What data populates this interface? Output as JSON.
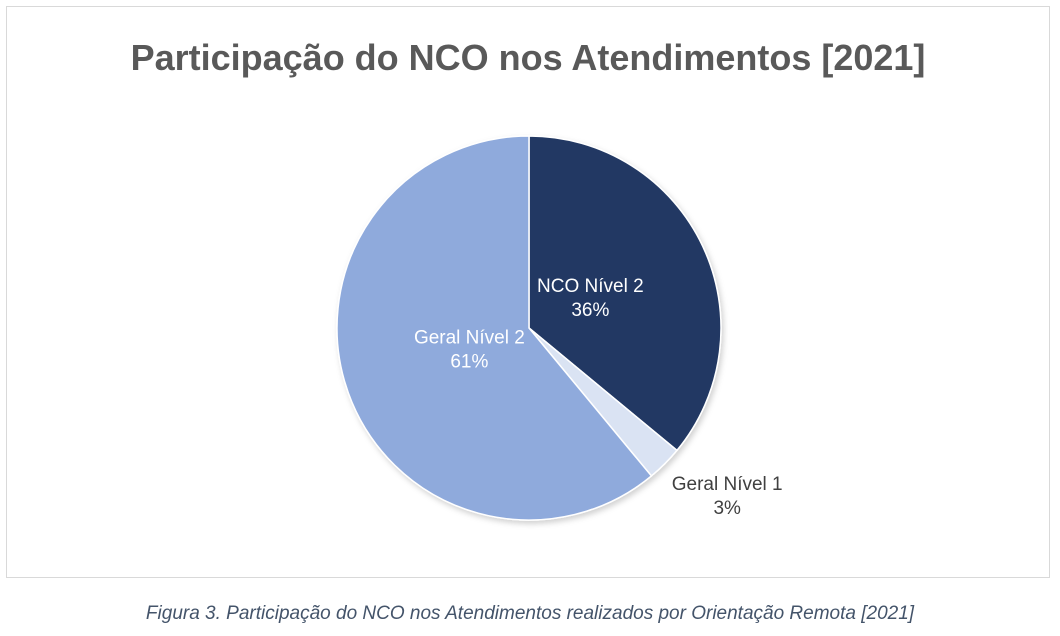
{
  "chart_data": {
    "type": "pie",
    "title": "Participação do NCO nos Atendimentos [2021]",
    "slices": [
      {
        "label": "NCO Nível 2",
        "value": 36,
        "value_label": "36%",
        "color": "#203864",
        "text_color": "#ffffff",
        "label_position": "inside"
      },
      {
        "label": "Geral Nível 1",
        "value": 3,
        "value_label": "3%",
        "color": "#dae3f3",
        "text_color": "#404040",
        "label_position": "outside"
      },
      {
        "label": "Geral Nível 2",
        "value": 61,
        "value_label": "61%",
        "color": "#8faadc",
        "text_color": "#ffffff",
        "label_position": "inside"
      }
    ],
    "start_angle": "12 o'clock",
    "direction": "clockwise"
  },
  "caption": "Figura 3. Participação do NCO nos Atendimentos realizados por Orientação Remota [2021]"
}
